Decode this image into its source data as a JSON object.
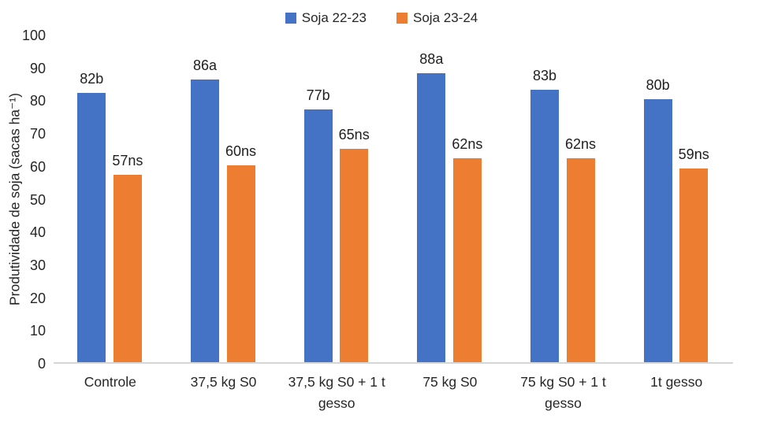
{
  "chart_data": {
    "type": "bar",
    "title": "",
    "ylabel": "Produtividade  de soja (sacas ha⁻¹)",
    "xlabel": "",
    "ylim": [
      0,
      100
    ],
    "ytick_step": 10,
    "grid": false,
    "legend_position": "top",
    "axis_line_color": "#d6d6d6",
    "categories": [
      "Controle",
      "37,5 kg  S0",
      "37,5 kg  S0 + 1 t gesso",
      "75 kg S0",
      "75 kg S0 + 1 t gesso",
      "1t gesso"
    ],
    "series": [
      {
        "name": "Soja 22-23",
        "color": "#4472C4",
        "values": [
          82,
          86,
          77,
          88,
          83,
          80
        ],
        "labels": [
          "82b",
          "86a",
          "77b",
          "88a",
          "83b",
          "80b"
        ]
      },
      {
        "name": "Soja 23-24",
        "color": "#ED7D31",
        "values": [
          57,
          60,
          65,
          62,
          62,
          59
        ],
        "labels": [
          "57ns",
          "60ns",
          "65ns",
          "62ns",
          "62ns",
          "59ns"
        ]
      }
    ]
  }
}
